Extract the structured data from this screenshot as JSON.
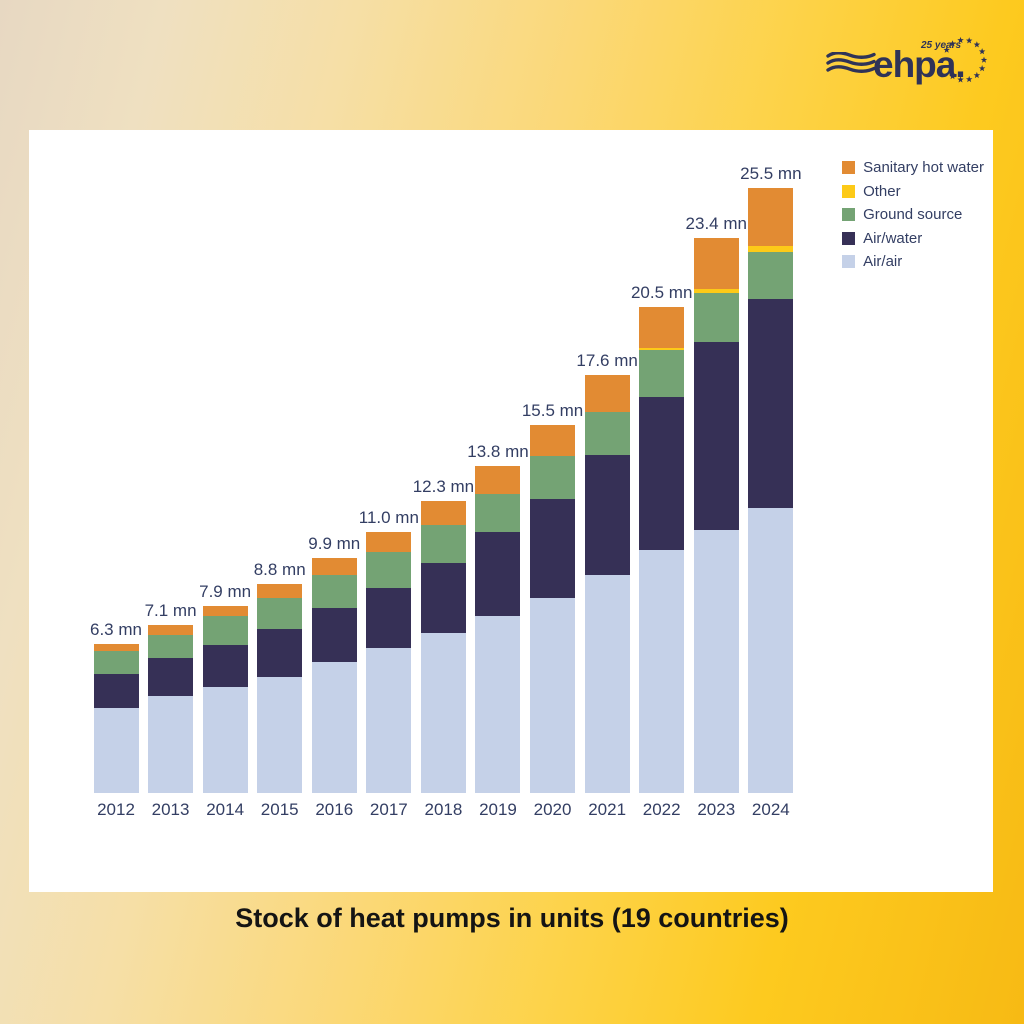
{
  "logo": {
    "brand": "ehpa.",
    "anniversary": "25 years"
  },
  "title": "Stock of heat pumps in units (19 countries)",
  "colors": {
    "background_left": "#e7d8c2",
    "background_right": "#f7ba14",
    "panel": "#ffffff",
    "axis_text": "#333e63",
    "title_text": "#141414",
    "logo": "#2f3357"
  },
  "chart_data": {
    "type": "bar",
    "stacked": true,
    "title": "Stock of heat pumps in units (19 countries)",
    "unit": "mn",
    "categories": [
      "2012",
      "2013",
      "2014",
      "2015",
      "2016",
      "2017",
      "2018",
      "2019",
      "2020",
      "2021",
      "2022",
      "2023",
      "2024"
    ],
    "total_labels": [
      "6.3 mn",
      "7.1 mn",
      "7.9 mn",
      "8.8 mn",
      "9.9 mn",
      "11.0 mn",
      "12.3 mn",
      "13.8 mn",
      "15.5 mn",
      "17.6 mn",
      "20.5 mn",
      "23.4 mn",
      "25.5 mn"
    ],
    "totals_mn": [
      6.3,
      7.1,
      7.9,
      8.8,
      9.9,
      11.0,
      12.3,
      13.8,
      15.5,
      17.6,
      20.5,
      23.4,
      25.5
    ],
    "series": [
      {
        "name": "Air/air",
        "color": "#c5d1e8",
        "values": [
          3.6,
          4.1,
          4.45,
          4.9,
          5.5,
          6.1,
          6.75,
          7.45,
          8.2,
          9.2,
          10.25,
          11.1,
          12.0
        ]
      },
      {
        "name": "Air/water",
        "color": "#363056",
        "values": [
          1.4,
          1.6,
          1.8,
          2.0,
          2.3,
          2.55,
          2.95,
          3.55,
          4.2,
          5.05,
          6.45,
          7.9,
          8.8
        ]
      },
      {
        "name": "Ground source",
        "color": "#74a374",
        "values": [
          1.0,
          0.95,
          1.2,
          1.3,
          1.4,
          1.5,
          1.6,
          1.6,
          1.8,
          1.8,
          1.95,
          2.05,
          2.0
        ]
      },
      {
        "name": "Other",
        "color": "#fdca18",
        "values": [
          0,
          0,
          0,
          0,
          0,
          0,
          0,
          0,
          0,
          0,
          0.1,
          0.2,
          0.25
        ]
      },
      {
        "name": "Sanitary hot water",
        "color": "#e28b33",
        "values": [
          0.3,
          0.45,
          0.45,
          0.6,
          0.7,
          0.85,
          1.0,
          1.2,
          1.3,
          1.55,
          1.75,
          2.15,
          2.45
        ]
      }
    ],
    "legend": [
      "Sanitary hot water",
      "Other",
      "Ground source",
      "Air/water",
      "Air/air"
    ],
    "legend_position": "top-right",
    "grid": false,
    "ylim": [
      0,
      28
    ]
  }
}
